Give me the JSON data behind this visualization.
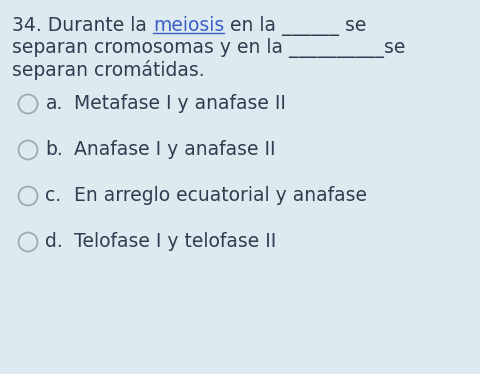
{
  "background_color": "#ddeaf0",
  "question_line1_pre": "34. Durante la ",
  "question_line1_link": "meiosis",
  "question_line1_post": " en la ______ se",
  "question_line2": "separan cromosomas y en la __________se",
  "question_line3": "separan cromátidas.",
  "options": [
    {
      "label": "a.",
      "text": "   Metafase I y anafase II"
    },
    {
      "label": "b.",
      "text": "   Anafase I y anafase II"
    },
    {
      "label": "c.",
      "text": "   En arreglo ecuatorial y anafase"
    },
    {
      "label": "d.",
      "text": "   Telofase I y telofase II"
    }
  ],
  "text_color": "#2e3d4f",
  "circle_edge_color": "#9aabb5",
  "circle_face_color": "#ddeaf0",
  "font_size_question": 13.5,
  "font_size_options": 13.5,
  "underline_color": "#3a5fc8",
  "link_color": "#3a5fc8"
}
